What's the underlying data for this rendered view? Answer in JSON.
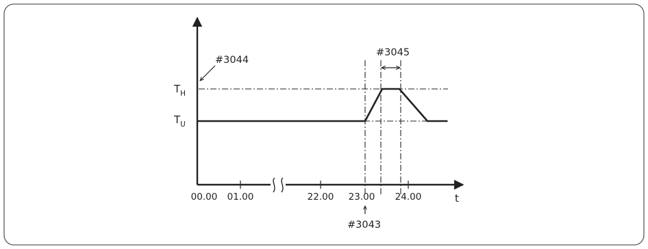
{
  "diagram": {
    "x_ticks": [
      "00.00",
      "01.00",
      "22.00",
      "23.00",
      "24.00"
    ],
    "x_axis_label": "t",
    "levels": {
      "high": "T",
      "high_sub": "H",
      "low": "T",
      "low_sub": "U"
    },
    "refs": {
      "setting": "#3044",
      "duration": "#3045",
      "start_time": "#3043"
    },
    "colors": {
      "line": "#222222",
      "frame": "#5a5a5a"
    }
  }
}
